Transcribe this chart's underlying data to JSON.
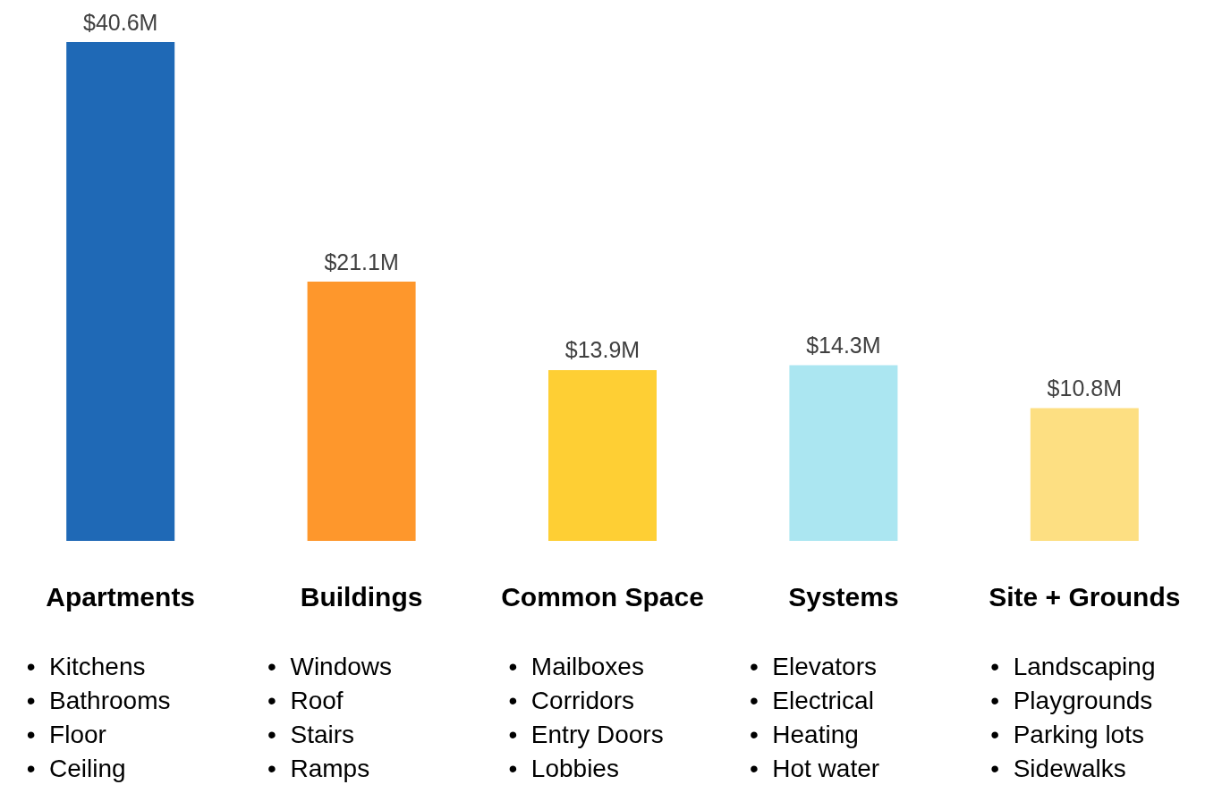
{
  "chart_data": {
    "type": "bar",
    "categories": [
      "Apartments",
      "Buildings",
      "Common Space",
      "Systems",
      "Site + Grounds"
    ],
    "values": [
      40.6,
      21.1,
      13.9,
      14.3,
      10.8
    ],
    "colors": [
      "#1f69b6",
      "#fe972c",
      "#fecf34",
      "#abe6f1",
      "#fddf82"
    ],
    "value_labels": [
      "$40.6M",
      "$21.1M",
      "$13.9M",
      "$14.3M",
      "$10.8M"
    ],
    "annotations": [
      "•  Kitchens\n•  Bathrooms\n•  Floor\n•  Ceiling",
      "•  Windows\n•  Roof\n•  Stairs\n•  Ramps",
      "•  Mailboxes\n•  Corridors\n•  Entry Doors\n•  Lobbies",
      "•  Elevators\n•  Electrical\n•  Heating\n•  Hot water",
      "•  Landscaping\n•  Playgrounds\n•  Parking lots\n•  Sidewalks"
    ]
  }
}
